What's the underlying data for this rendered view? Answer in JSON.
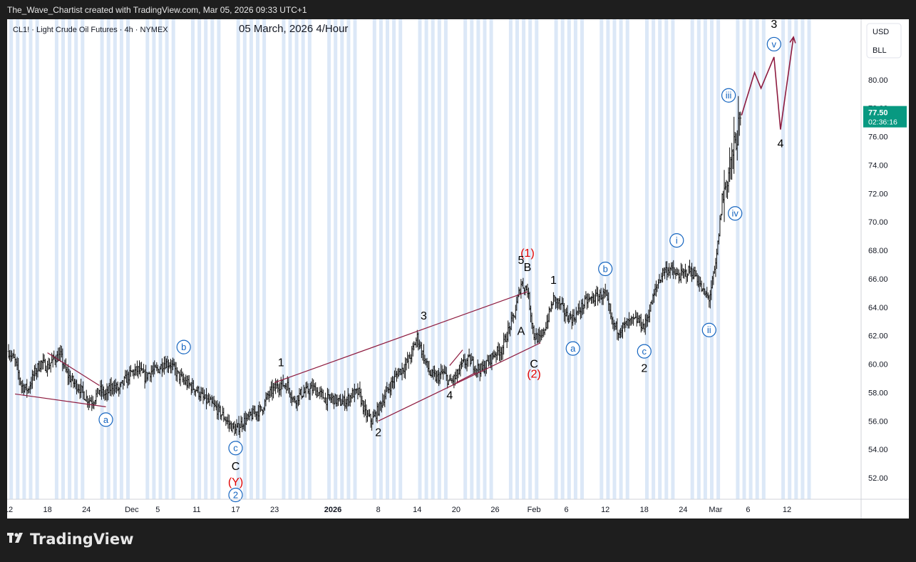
{
  "attribution": "The_Wave_Chartist created with TradingView.com, Mar 05, 2026 09:33 UTC+1",
  "footer_brand": "TradingView",
  "symbol_line": "CL1! · Light Crude Oil Futures · 4h · NYMEX",
  "chart_title": "05 March, 2026 4/Hour",
  "currency": "USD",
  "unit": "BLL",
  "last_price": "77.50",
  "countdown": "02:36:16",
  "colors": {
    "price_tag": "#089981",
    "wave_red": "#e00000",
    "wave_blue": "#1565c0",
    "channel": "#8e1b3f",
    "projection": "#8e1b3f",
    "bars": "#111111",
    "stripe": "#dce8f7"
  },
  "icons": {
    "brand": "tradingview-logo-icon"
  },
  "chart_data": {
    "type": "line",
    "title": "05 March, 2026 4/Hour",
    "xlabel": "",
    "ylabel": "",
    "ylim": [
      50.5,
      83.5
    ],
    "y_ticks": [
      "52.00",
      "54.00",
      "56.00",
      "58.00",
      "60.00",
      "62.00",
      "64.00",
      "66.00",
      "68.00",
      "70.00",
      "72.00",
      "74.00",
      "76.00",
      "78.00",
      "80.00"
    ],
    "x_ticks": [
      "12",
      "18",
      "24",
      "Dec",
      "5",
      "11",
      "17",
      "23",
      "2026",
      "8",
      "14",
      "20",
      "26",
      "Feb",
      "6",
      "12",
      "18",
      "24",
      "Mar",
      "6",
      "12"
    ],
    "x_tick_dates": [
      "2025-11-12",
      "2025-11-18",
      "2025-11-24",
      "2025-12-01",
      "2025-12-05",
      "2025-12-11",
      "2025-12-17",
      "2025-12-23",
      "2026-01-01",
      "2026-01-08",
      "2026-01-14",
      "2026-01-20",
      "2026-01-26",
      "2026-02-01",
      "2026-02-06",
      "2026-02-12",
      "2026-02-18",
      "2026-02-24",
      "2026-03-01",
      "2026-03-06",
      "2026-03-12"
    ],
    "series": [
      {
        "type": "bars_4h",
        "close_path": [
          [
            "2025-11-12",
            60.9
          ],
          [
            "2025-11-13",
            60.2
          ],
          [
            "2025-11-14",
            58.5
          ],
          [
            "2025-11-15",
            58.2
          ],
          [
            "2025-11-16",
            59.4
          ],
          [
            "2025-11-17",
            60.1
          ],
          [
            "2025-11-18",
            59.8
          ],
          [
            "2025-11-19",
            60.4
          ],
          [
            "2025-11-20",
            60.6
          ],
          [
            "2025-11-21",
            59.3
          ],
          [
            "2025-11-22",
            58.7
          ],
          [
            "2025-11-23",
            58.3
          ],
          [
            "2025-11-24",
            57.6
          ],
          [
            "2025-11-25",
            57.4
          ],
          [
            "2025-11-26",
            58.2
          ],
          [
            "2025-11-27",
            57.8
          ],
          [
            "2025-11-28",
            58.5
          ],
          [
            "2025-11-29",
            58.2
          ],
          [
            "2025-11-30",
            58.9
          ],
          [
            "2025-12-01",
            59.4
          ],
          [
            "2025-12-02",
            59.6
          ],
          [
            "2025-12-03",
            59.1
          ],
          [
            "2025-12-04",
            59.5
          ],
          [
            "2025-12-05",
            59.6
          ],
          [
            "2025-12-06",
            60.1
          ],
          [
            "2025-12-07",
            60.0
          ],
          [
            "2025-12-08",
            59.3
          ],
          [
            "2025-12-09",
            58.8
          ],
          [
            "2025-12-10",
            58.5
          ],
          [
            "2025-12-11",
            58.2
          ],
          [
            "2025-12-12",
            57.6
          ],
          [
            "2025-12-13",
            57.3
          ],
          [
            "2025-12-14",
            56.9
          ],
          [
            "2025-12-15",
            56.4
          ],
          [
            "2025-12-16",
            55.8
          ],
          [
            "2025-12-17",
            55.3
          ],
          [
            "2025-12-18",
            55.9
          ],
          [
            "2025-12-19",
            56.2
          ],
          [
            "2025-12-20",
            56.6
          ],
          [
            "2025-12-21",
            56.8
          ],
          [
            "2025-12-22",
            57.8
          ],
          [
            "2025-12-23",
            58.3
          ],
          [
            "2025-12-24",
            58.6
          ],
          [
            "2025-12-25",
            58.5
          ],
          [
            "2025-12-26",
            57.4
          ],
          [
            "2025-12-27",
            57.9
          ],
          [
            "2025-12-28",
            58.1
          ],
          [
            "2025-12-29",
            58.3
          ],
          [
            "2025-12-30",
            57.9
          ],
          [
            "2025-12-31",
            57.5
          ],
          [
            "2026-01-01",
            57.6
          ],
          [
            "2026-01-02",
            57.3
          ],
          [
            "2026-01-03",
            57.4
          ],
          [
            "2026-01-04",
            57.9
          ],
          [
            "2026-01-05",
            58.0
          ],
          [
            "2026-01-06",
            56.5
          ],
          [
            "2026-01-07",
            56.0
          ],
          [
            "2026-01-08",
            56.8
          ],
          [
            "2026-01-09",
            57.8
          ],
          [
            "2026-01-10",
            58.6
          ],
          [
            "2026-01-11",
            59.4
          ],
          [
            "2026-01-12",
            59.8
          ],
          [
            "2026-01-13",
            60.6
          ],
          [
            "2026-01-14",
            61.9
          ],
          [
            "2026-01-15",
            60.5
          ],
          [
            "2026-01-16",
            59.3
          ],
          [
            "2026-01-17",
            59.0
          ],
          [
            "2026-01-18",
            59.4
          ],
          [
            "2026-01-19",
            58.7
          ],
          [
            "2026-01-20",
            59.1
          ],
          [
            "2026-01-21",
            60.0
          ],
          [
            "2026-01-22",
            60.3
          ],
          [
            "2026-01-23",
            59.8
          ],
          [
            "2026-01-24",
            59.6
          ],
          [
            "2026-01-25",
            60.2
          ],
          [
            "2026-01-26",
            60.8
          ],
          [
            "2026-01-27",
            61.0
          ],
          [
            "2026-01-28",
            62.3
          ],
          [
            "2026-01-29",
            63.5
          ],
          [
            "2026-01-30",
            65.7
          ],
          [
            "2026-01-31",
            65.2
          ],
          [
            "2026-02-01",
            62.0
          ],
          [
            "2026-02-02",
            61.7
          ],
          [
            "2026-02-03",
            63.0
          ],
          [
            "2026-02-04",
            64.6
          ],
          [
            "2026-02-05",
            64.2
          ],
          [
            "2026-02-06",
            63.4
          ],
          [
            "2026-02-07",
            63.2
          ],
          [
            "2026-02-08",
            63.8
          ],
          [
            "2026-02-09",
            64.4
          ],
          [
            "2026-02-10",
            64.6
          ],
          [
            "2026-02-11",
            64.8
          ],
          [
            "2026-02-12",
            64.9
          ],
          [
            "2026-02-13",
            62.9
          ],
          [
            "2026-02-14",
            62.4
          ],
          [
            "2026-02-15",
            62.7
          ],
          [
            "2026-02-16",
            63.0
          ],
          [
            "2026-02-17",
            63.1
          ],
          [
            "2026-02-18",
            62.6
          ],
          [
            "2026-02-19",
            64.1
          ],
          [
            "2026-02-20",
            65.6
          ],
          [
            "2026-02-21",
            66.6
          ],
          [
            "2026-02-22",
            66.7
          ],
          [
            "2026-02-23",
            66.2
          ],
          [
            "2026-02-24",
            66.3
          ],
          [
            "2026-02-25",
            66.6
          ],
          [
            "2026-02-26",
            66.2
          ],
          [
            "2026-02-27",
            65.1
          ],
          [
            "2026-02-28",
            64.6
          ],
          [
            "2026-03-01",
            66.9
          ],
          [
            "2026-03-02",
            71.5
          ],
          [
            "2026-03-03",
            73.5
          ],
          [
            "2026-03-04",
            75.5
          ],
          [
            "2026-03-05",
            77.5
          ]
        ]
      },
      {
        "type": "projection",
        "points": [
          [
            "2026-03-05",
            77.5
          ],
          [
            "2026-03-07",
            80.5
          ],
          [
            "2026-03-08",
            79.4
          ],
          [
            "2026-03-10",
            81.6
          ],
          [
            "2026-03-11",
            76.5
          ],
          [
            "2026-03-13",
            83.0
          ]
        ]
      }
    ],
    "trendlines": [
      {
        "from": [
          "2025-11-18",
          60.8
        ],
        "to": [
          "2025-11-26",
          58.5
        ]
      },
      {
        "from": [
          "2025-11-13",
          57.9
        ],
        "to": [
          "2025-11-27",
          57.0
        ]
      },
      {
        "from": [
          "2025-12-23",
          58.7
        ],
        "to": [
          "2026-01-31",
          65.1
        ]
      },
      {
        "from": [
          "2026-01-08",
          56.0
        ],
        "to": [
          "2026-02-02",
          61.5
        ]
      },
      {
        "from": [
          "2026-01-19",
          59.9
        ],
        "to": [
          "2026-01-21",
          61.0
        ]
      },
      {
        "from": [
          "2026-01-20",
          58.7
        ],
        "to": [
          "2026-01-23",
          59.4
        ]
      }
    ],
    "wave_labels": [
      {
        "text": "a",
        "style": "blue-circle",
        "date": "2025-11-27",
        "price": 56.1
      },
      {
        "text": "b",
        "style": "blue-circle",
        "date": "2025-12-09",
        "price": 61.2
      },
      {
        "text": "c",
        "style": "blue-circle",
        "date": "2025-12-17",
        "price": 54.1
      },
      {
        "text": "C",
        "style": "black",
        "date": "2025-12-17",
        "price": 52.8
      },
      {
        "text": "(Y)",
        "style": "red",
        "date": "2025-12-17",
        "price": 51.7
      },
      {
        "text": "2",
        "style": "blue-circle",
        "date": "2025-12-17",
        "price": 50.8
      },
      {
        "text": "1",
        "style": "black",
        "date": "2025-12-24",
        "price": 60.1
      },
      {
        "text": "2",
        "style": "black",
        "date": "2026-01-08",
        "price": 55.2
      },
      {
        "text": "3",
        "style": "black",
        "date": "2026-01-15",
        "price": 63.4
      },
      {
        "text": "4",
        "style": "black",
        "date": "2026-01-19",
        "price": 57.8
      },
      {
        "text": "(1)",
        "style": "red",
        "date": "2026-01-31",
        "price": 67.8
      },
      {
        "text": "5",
        "style": "black",
        "date": "2026-01-30",
        "price": 67.3
      },
      {
        "text": "B",
        "style": "black",
        "date": "2026-01-31",
        "price": 66.8
      },
      {
        "text": "A",
        "style": "black",
        "date": "2026-01-30",
        "price": 62.3
      },
      {
        "text": "C",
        "style": "black",
        "date": "2026-02-01",
        "price": 60.0
      },
      {
        "text": "(2)",
        "style": "red",
        "date": "2026-02-01",
        "price": 59.3
      },
      {
        "text": "1",
        "style": "black",
        "date": "2026-02-04",
        "price": 65.9
      },
      {
        "text": "a",
        "style": "blue-circle",
        "date": "2026-02-07",
        "price": 61.1
      },
      {
        "text": "b",
        "style": "blue-circle",
        "date": "2026-02-12",
        "price": 66.7
      },
      {
        "text": "c",
        "style": "blue-circle",
        "date": "2026-02-18",
        "price": 60.9
      },
      {
        "text": "2",
        "style": "black",
        "date": "2026-02-18",
        "price": 59.7
      },
      {
        "text": "i",
        "style": "blue-circle",
        "date": "2026-02-23",
        "price": 68.7
      },
      {
        "text": "ii",
        "style": "blue-circle",
        "date": "2026-02-28",
        "price": 62.4
      },
      {
        "text": "iii",
        "style": "blue-circle",
        "date": "2026-03-03",
        "price": 78.9
      },
      {
        "text": "iv",
        "style": "blue-circle",
        "date": "2026-03-04",
        "price": 70.6
      },
      {
        "text": "3",
        "style": "black",
        "date": "2026-03-10",
        "price": 83.9
      },
      {
        "text": "v",
        "style": "blue-circle",
        "date": "2026-03-10",
        "price": 82.5
      },
      {
        "text": "4",
        "style": "black",
        "date": "2026-03-11",
        "price": 75.5
      }
    ]
  }
}
